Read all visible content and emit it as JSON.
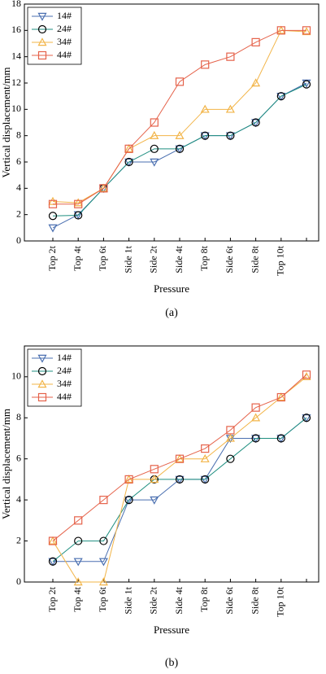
{
  "chart_data": [
    {
      "type": "line",
      "caption": "(a)",
      "xlabel": "Pressure",
      "ylabel": "Vertical displacement/mm",
      "categories": [
        "Top 2t",
        "Top 4t",
        "Top 6t",
        "Side 1t",
        "Side 2t",
        "Side 4t",
        "Top 8t",
        "Side 6t",
        "Side 8t",
        "Top 10t",
        null
      ],
      "ylim": [
        0,
        18
      ],
      "yticks": [
        0,
        2,
        4,
        6,
        8,
        10,
        12,
        14,
        16,
        18
      ],
      "legend": "upper left",
      "series": [
        {
          "name": "14#",
          "color": "#4a6fb0",
          "marker": "triangle-down",
          "values": [
            1,
            2,
            4,
            6,
            6,
            7,
            8,
            8,
            9,
            11,
            12
          ]
        },
        {
          "name": "24#",
          "color": "#1f8f80",
          "marker": "circle",
          "values": [
            1.9,
            1.95,
            4,
            6,
            7,
            7,
            8,
            8,
            9,
            11,
            11.9
          ]
        },
        {
          "name": "34#",
          "color": "#f2b447",
          "marker": "triangle-up",
          "values": [
            3,
            2.9,
            4,
            7,
            8,
            8,
            10,
            10,
            12,
            16,
            15.9
          ]
        },
        {
          "name": "44#",
          "color": "#e5624a",
          "marker": "square",
          "values": [
            2.8,
            2.8,
            4,
            7,
            9,
            12.1,
            13.4,
            14,
            15.1,
            16,
            16
          ]
        }
      ]
    },
    {
      "type": "line",
      "caption": "(b)",
      "xlabel": "Pressure",
      "ylabel": "Vertical displacement/mm",
      "categories": [
        "Top 2t",
        "Top 4t",
        "Top 6t",
        "Side 1t",
        "Side 2t",
        "Side 4t",
        "Top 8t",
        "Side 6t",
        "Side 8t",
        "Top 10t",
        null
      ],
      "ylim": [
        0,
        11.5
      ],
      "yticks": [
        0,
        2,
        4,
        6,
        8,
        10
      ],
      "legend": "upper left",
      "series": [
        {
          "name": "14#",
          "color": "#4a6fb0",
          "marker": "triangle-down",
          "values": [
            1,
            1,
            1,
            4,
            4,
            5,
            5,
            7,
            7,
            7,
            8
          ]
        },
        {
          "name": "24#",
          "color": "#1f8f80",
          "marker": "circle",
          "values": [
            1,
            2,
            2,
            4,
            5,
            5,
            5,
            6,
            7,
            7,
            8
          ]
        },
        {
          "name": "34#",
          "color": "#f2b447",
          "marker": "triangle-up",
          "values": [
            2,
            0,
            0,
            5,
            5,
            6,
            6,
            7,
            8,
            9,
            10
          ]
        },
        {
          "name": "44#",
          "color": "#e5624a",
          "marker": "square",
          "values": [
            2,
            3,
            4,
            5,
            5.5,
            6,
            6.5,
            7.4,
            8.5,
            9,
            10.1
          ]
        }
      ]
    }
  ]
}
